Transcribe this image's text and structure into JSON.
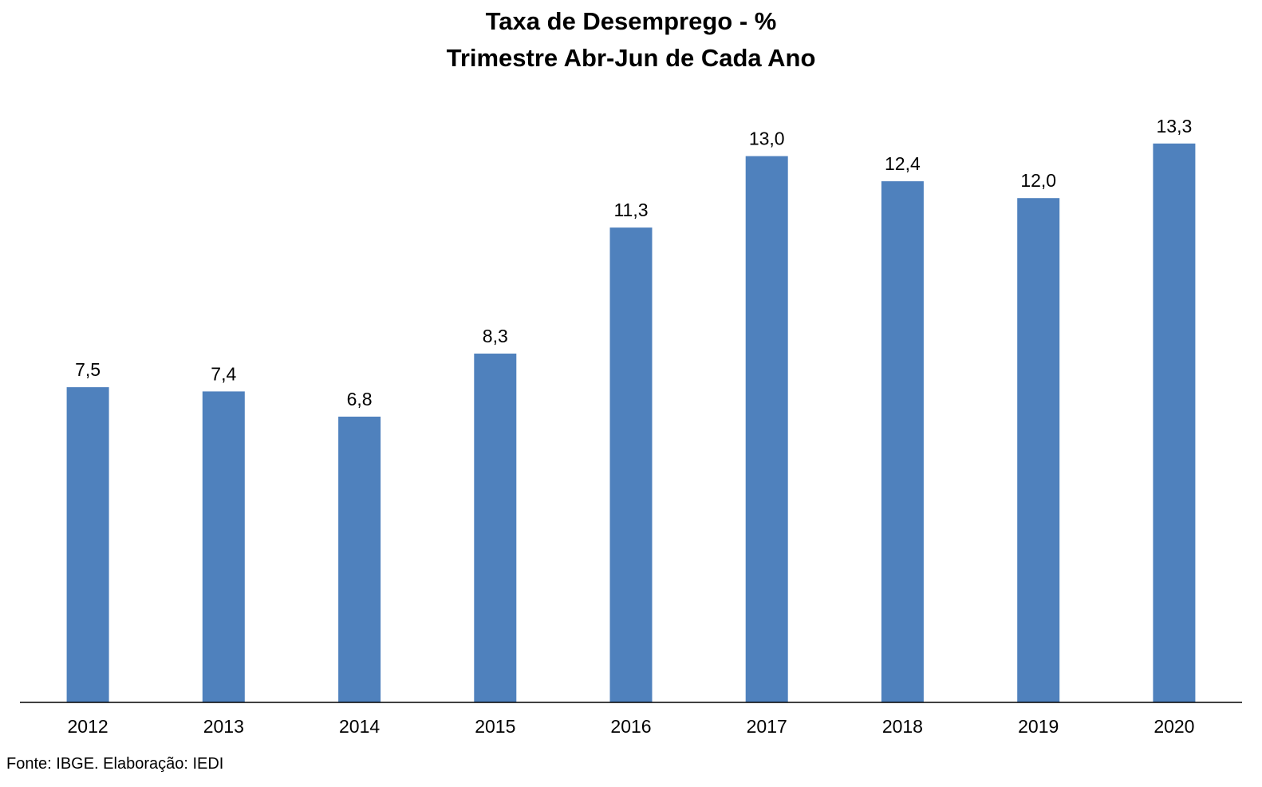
{
  "chart_data": {
    "type": "bar",
    "title": "Taxa de Desemprego - %",
    "subtitle": "Trimestre Abr-Jun de Cada Ano",
    "categories": [
      "2012",
      "2013",
      "2014",
      "2015",
      "2016",
      "2017",
      "2018",
      "2019",
      "2020"
    ],
    "values": [
      7.5,
      7.4,
      6.8,
      8.3,
      11.3,
      13.0,
      12.4,
      12.0,
      13.3
    ],
    "value_labels": [
      "7,5",
      "7,4",
      "6,8",
      "8,3",
      "11,3",
      "13,0",
      "12,4",
      "12,0",
      "13,3"
    ],
    "xlabel": "",
    "ylabel": "",
    "ylim": [
      0,
      14
    ],
    "grid": false,
    "legend": "none",
    "bar_color": "#4f81bd",
    "axis_color": "#000000"
  },
  "source_note": "Fonte: IBGE. Elaboração: IEDI"
}
